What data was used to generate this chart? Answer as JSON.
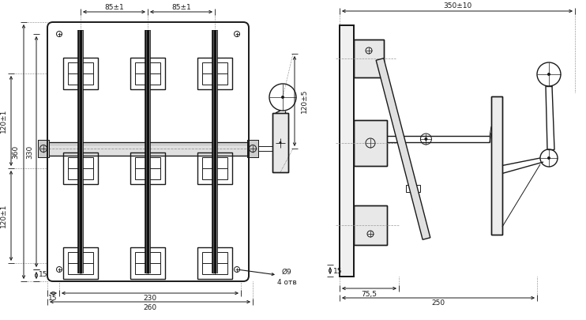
{
  "bg_color": "#ffffff",
  "line_color": "#1a1a1a",
  "dim_color": "#1a1a1a",
  "cc": "#999999",
  "fig_width": 7.42,
  "fig_height": 4.05,
  "dpi": 100,
  "ann": {
    "d85_1": "85±1",
    "d120_5": "120±5",
    "d120_1": "120±1",
    "d360": "360",
    "d330": "330",
    "d15": "15",
    "d230": "230",
    "d260": "260",
    "d_o9": "Ø9",
    "d_4otv": "4 отв",
    "d350_10": "350±10",
    "d15r": "15",
    "d75_5": "75,5",
    "d250": "250"
  }
}
